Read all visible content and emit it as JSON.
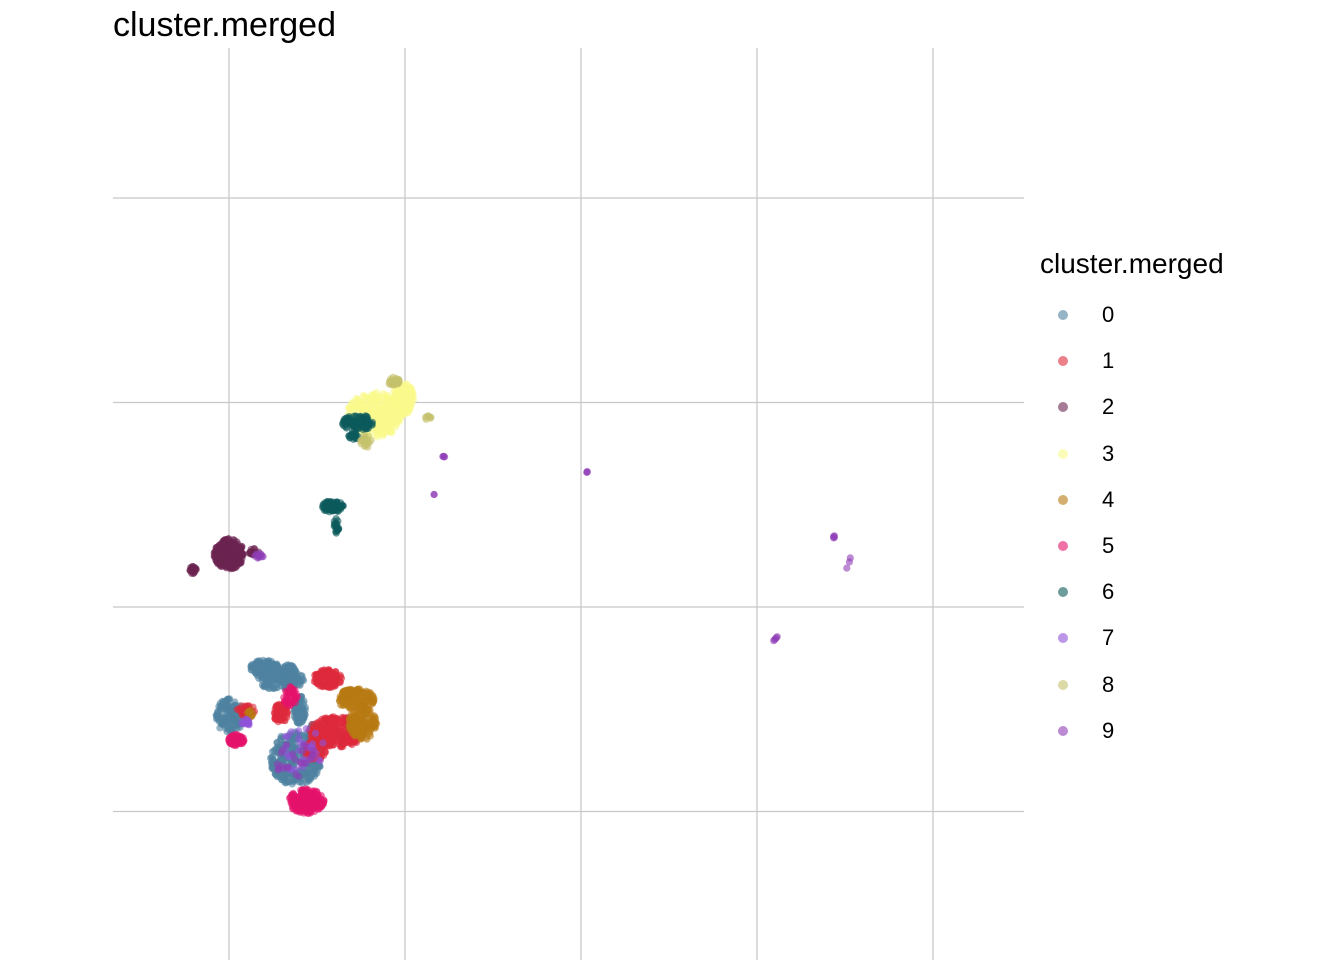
{
  "chart_data": {
    "type": "scatter",
    "title": "cluster.merged",
    "xlabel": "",
    "ylabel": "",
    "grid": true,
    "legend_position": "right",
    "legend_title": "cluster.merged",
    "point_alpha": 0.6,
    "series": [
      {
        "name": "0",
        "color": "#4e82a0",
        "regions": [
          {
            "cx": 0.03,
            "cy": -5.3,
            "rx": 0.8,
            "ry": 0.9,
            "n": 140
          },
          {
            "cx": 2.0,
            "cy": -3.0,
            "rx": 0.9,
            "ry": 0.4,
            "n": 120
          },
          {
            "cx": 3.4,
            "cy": -3.35,
            "rx": 0.45,
            "ry": 0.55,
            "n": 90
          },
          {
            "cx": 3.0,
            "cy": -3.6,
            "rx": 1.4,
            "ry": 0.45,
            "n": 120
          },
          {
            "cx": 4.0,
            "cy": -5.0,
            "rx": 0.35,
            "ry": 0.7,
            "n": 80
          },
          {
            "cx": 3.8,
            "cy": -7.4,
            "rx": 1.5,
            "ry": 1.3,
            "n": 320
          },
          {
            "cx": 4.8,
            "cy": -6.6,
            "rx": 0.4,
            "ry": 0.9,
            "n": 90
          }
        ]
      },
      {
        "name": "1",
        "color": "#de2a3c",
        "regions": [
          {
            "cx": 0.95,
            "cy": -5.05,
            "rx": 0.55,
            "ry": 0.3,
            "n": 40
          },
          {
            "cx": 2.95,
            "cy": -5.2,
            "rx": 0.4,
            "ry": 0.5,
            "n": 70
          },
          {
            "cx": 5.6,
            "cy": -3.5,
            "rx": 0.8,
            "ry": 0.45,
            "n": 140
          },
          {
            "cx": 6.15,
            "cy": -6.1,
            "rx": 1.6,
            "ry": 0.75,
            "n": 320
          },
          {
            "cx": 4.9,
            "cy": -7.0,
            "rx": 0.6,
            "ry": 0.5,
            "n": 60
          }
        ]
      },
      {
        "name": "2",
        "color": "#6b2350",
        "regions": [
          {
            "cx": 0.0,
            "cy": 2.6,
            "rx": 0.85,
            "ry": 0.75,
            "n": 260
          },
          {
            "cx": -2.05,
            "cy": 1.8,
            "rx": 0.2,
            "ry": 0.18,
            "n": 24
          },
          {
            "cx": 1.4,
            "cy": 2.7,
            "rx": 0.3,
            "ry": 0.15,
            "n": 16
          }
        ]
      },
      {
        "name": "3",
        "color": "#fafa8c",
        "regions": [
          {
            "cx": 8.3,
            "cy": 9.4,
            "rx": 1.6,
            "ry": 1.1,
            "n": 280
          },
          {
            "cx": 9.9,
            "cy": 10.2,
            "rx": 0.6,
            "ry": 0.8,
            "n": 120
          }
        ]
      },
      {
        "name": "4",
        "color": "#b77a13",
        "regions": [
          {
            "cx": 7.2,
            "cy": -4.5,
            "rx": 1.1,
            "ry": 0.5,
            "n": 150
          },
          {
            "cx": 7.6,
            "cy": -5.7,
            "rx": 0.8,
            "ry": 0.8,
            "n": 150
          },
          {
            "cx": 1.2,
            "cy": -5.2,
            "rx": 0.2,
            "ry": 0.2,
            "n": 10
          }
        ]
      },
      {
        "name": "5",
        "color": "#e5126a",
        "regions": [
          {
            "cx": 0.4,
            "cy": -6.5,
            "rx": 0.45,
            "ry": 0.3,
            "n": 70
          },
          {
            "cx": 4.4,
            "cy": -9.5,
            "rx": 1.0,
            "ry": 0.6,
            "n": 220
          },
          {
            "cx": 3.5,
            "cy": -4.4,
            "rx": 0.4,
            "ry": 0.5,
            "n": 40
          }
        ]
      },
      {
        "name": "6",
        "color": "#0b5a5c",
        "regions": [
          {
            "cx": 5.9,
            "cy": 4.9,
            "rx": 0.6,
            "ry": 0.3,
            "n": 80
          },
          {
            "cx": 6.1,
            "cy": 4.0,
            "rx": 0.15,
            "ry": 0.4,
            "n": 20
          },
          {
            "cx": 7.3,
            "cy": 9.0,
            "rx": 0.9,
            "ry": 0.4,
            "n": 90
          },
          {
            "cx": 7.1,
            "cy": 8.35,
            "rx": 0.3,
            "ry": 0.15,
            "n": 20
          }
        ]
      },
      {
        "name": "7",
        "color": "#9051d8",
        "regions": [
          {
            "cx": 1.0,
            "cy": -5.65,
            "rx": 0.3,
            "ry": 0.2,
            "n": 14
          },
          {
            "cx": 4.2,
            "cy": -7.0,
            "rx": 1.2,
            "ry": 1.2,
            "n": 30
          }
        ]
      },
      {
        "name": "8",
        "color": "#c5c16d",
        "regions": [
          {
            "cx": 9.4,
            "cy": 11.0,
            "rx": 0.35,
            "ry": 0.25,
            "n": 30
          },
          {
            "cx": 7.8,
            "cy": 8.1,
            "rx": 0.35,
            "ry": 0.3,
            "n": 20
          },
          {
            "cx": 11.3,
            "cy": 9.25,
            "rx": 0.2,
            "ry": 0.1,
            "n": 8
          }
        ]
      },
      {
        "name": "9",
        "color": "#8f3eb7",
        "points": [
          [
            12.2,
            7.35
          ],
          [
            12.2,
            7.37
          ],
          [
            12.15,
            7.36
          ],
          [
            12.25,
            7.34
          ],
          [
            20.35,
            6.6
          ],
          [
            20.35,
            6.62
          ],
          [
            20.33,
            6.58
          ],
          [
            11.65,
            5.5
          ],
          [
            11.66,
            5.5
          ],
          [
            34.35,
            3.45
          ],
          [
            34.4,
            3.4
          ],
          [
            34.35,
            3.38
          ],
          [
            34.4,
            3.48
          ],
          [
            35.25,
            2.2
          ],
          [
            35.3,
            2.4
          ],
          [
            35.1,
            1.9
          ],
          [
            31.0,
            -1.6
          ],
          [
            31.1,
            -1.5
          ],
          [
            31.05,
            -1.55
          ],
          [
            31.15,
            -1.45
          ],
          [
            30.95,
            -1.65
          ]
        ],
        "regions": [
          {
            "cx": 1.7,
            "cy": 2.5,
            "rx": 0.25,
            "ry": 0.12,
            "n": 12
          },
          {
            "cx": 3.7,
            "cy": -7.4,
            "rx": 1.2,
            "ry": 1.0,
            "n": 25
          }
        ]
      }
    ]
  }
}
